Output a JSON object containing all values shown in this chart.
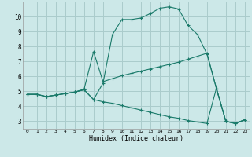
{
  "xlabel": "Humidex (Indice chaleur)",
  "bg_color": "#cce8e8",
  "grid_color": "#aacccc",
  "line_color": "#1a7a6a",
  "xlim": [
    -0.5,
    23.5
  ],
  "ylim": [
    2.5,
    11.0
  ],
  "xticks": [
    0,
    1,
    2,
    3,
    4,
    5,
    6,
    7,
    8,
    9,
    10,
    11,
    12,
    13,
    14,
    15,
    16,
    17,
    18,
    19,
    20,
    21,
    22,
    23
  ],
  "yticks": [
    3,
    4,
    5,
    6,
    7,
    8,
    9,
    10
  ],
  "series1_x": [
    0,
    1,
    2,
    3,
    4,
    5,
    6,
    7,
    8,
    9,
    10,
    11,
    12,
    13,
    14,
    15,
    16,
    17,
    18,
    19,
    20,
    21,
    22,
    23
  ],
  "series1_y": [
    4.8,
    4.8,
    4.65,
    4.75,
    4.85,
    4.95,
    5.1,
    4.45,
    5.55,
    8.8,
    9.8,
    9.8,
    9.9,
    10.2,
    10.55,
    10.65,
    10.5,
    9.4,
    8.8,
    7.5,
    5.2,
    3.0,
    2.85,
    3.1
  ],
  "series2_x": [
    0,
    1,
    2,
    3,
    4,
    5,
    6,
    7,
    8,
    9,
    10,
    11,
    12,
    13,
    14,
    15,
    16,
    17,
    18,
    19,
    20,
    21,
    22,
    23
  ],
  "series2_y": [
    4.8,
    4.8,
    4.65,
    4.75,
    4.85,
    4.95,
    5.15,
    7.65,
    5.65,
    5.85,
    6.05,
    6.2,
    6.35,
    6.5,
    6.65,
    6.8,
    6.95,
    7.15,
    7.35,
    7.55,
    5.2,
    3.0,
    2.85,
    3.1
  ],
  "series3_x": [
    0,
    1,
    2,
    3,
    4,
    5,
    6,
    7,
    8,
    9,
    10,
    11,
    12,
    13,
    14,
    15,
    16,
    17,
    18,
    19,
    20,
    21,
    22,
    23
  ],
  "series3_y": [
    4.8,
    4.8,
    4.65,
    4.75,
    4.85,
    4.95,
    5.1,
    4.45,
    4.3,
    4.2,
    4.05,
    3.9,
    3.75,
    3.6,
    3.45,
    3.3,
    3.2,
    3.05,
    2.95,
    2.85,
    5.2,
    3.0,
    2.85,
    3.1
  ]
}
